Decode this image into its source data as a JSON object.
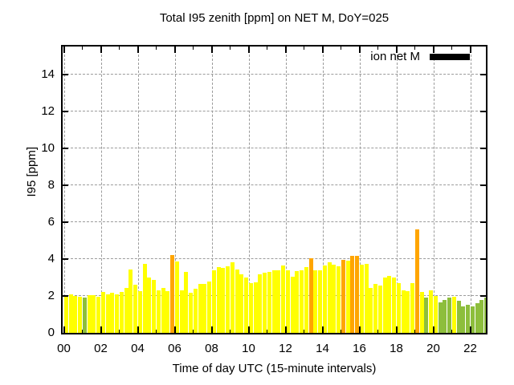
{
  "title": "Total I95 zenith [ppm] on NET M, DoY=025",
  "legend": {
    "label": "ion net M",
    "swatch_color": "#000000"
  },
  "axes": {
    "ylabel": "I95 [ppm]",
    "xlabel": "Time of day UTC (15-minute intervals)",
    "ytick_labels": [
      "0",
      "2",
      "4",
      "6",
      "8",
      "10",
      "12",
      "14"
    ],
    "ytick_values": [
      0,
      2,
      4,
      6,
      8,
      10,
      12,
      14
    ],
    "xtick_labels": [
      "00",
      "02",
      "04",
      "06",
      "08",
      "10",
      "12",
      "14",
      "16",
      "18",
      "20",
      "22"
    ],
    "xtick_hours": [
      0,
      2,
      4,
      6,
      8,
      10,
      12,
      14,
      16,
      18,
      20,
      22
    ],
    "minor_xtick_hours": [
      1,
      3,
      5,
      7,
      9,
      11,
      13,
      15,
      17,
      19,
      21
    ],
    "ymax": 15.5,
    "grid_color": "#9b9b9b",
    "border_color": "#000000"
  },
  "colors": {
    "Y": "#ffff00",
    "O": "#ffa500",
    "G": "#8dbe3c"
  },
  "chart_data": {
    "type": "bar",
    "title": "Total I95 zenith [ppm] on NET M, DoY=025",
    "xlabel": "Time of day UTC (15-minute intervals)",
    "ylabel": "I95 [ppm]",
    "ylim": [
      0,
      15.5
    ],
    "interval_minutes": 15,
    "start_time": "00:00",
    "end_time": "22:45",
    "values": [
      2.05,
      2.1,
      2.0,
      1.95,
      1.93,
      2.05,
      2.05,
      1.95,
      2.2,
      2.1,
      2.15,
      2.1,
      2.2,
      2.45,
      3.45,
      2.6,
      2.25,
      3.75,
      3.0,
      2.85,
      2.3,
      2.45,
      2.25,
      4.2,
      3.85,
      2.3,
      3.3,
      2.15,
      2.4,
      2.65,
      2.65,
      2.8,
      3.4,
      3.55,
      3.5,
      3.6,
      3.8,
      3.45,
      3.15,
      3.0,
      2.7,
      2.75,
      3.15,
      3.25,
      3.3,
      3.4,
      3.4,
      3.65,
      3.4,
      3.05,
      3.35,
      3.4,
      3.55,
      4.05,
      3.4,
      3.4,
      3.65,
      3.8,
      3.7,
      3.6,
      3.95,
      3.9,
      4.15,
      4.15,
      3.7,
      3.75,
      2.45,
      2.65,
      2.55,
      3.0,
      3.1,
      3.0,
      2.7,
      2.3,
      2.25,
      2.7,
      5.6,
      2.2,
      1.9,
      2.3,
      2.0,
      1.65,
      1.8,
      1.9,
      1.95,
      1.75,
      1.45,
      1.5,
      1.45,
      1.6,
      1.8,
      1.9
    ],
    "bar_colors": [
      "Y",
      "Y",
      "Y",
      "Y",
      "G",
      "Y",
      "Y",
      "Y",
      "Y",
      "Y",
      "Y",
      "Y",
      "Y",
      "Y",
      "Y",
      "Y",
      "Y",
      "Y",
      "Y",
      "Y",
      "Y",
      "Y",
      "Y",
      "O",
      "Y",
      "Y",
      "Y",
      "Y",
      "Y",
      "Y",
      "Y",
      "Y",
      "Y",
      "Y",
      "Y",
      "Y",
      "Y",
      "Y",
      "Y",
      "Y",
      "Y",
      "Y",
      "Y",
      "Y",
      "Y",
      "Y",
      "Y",
      "Y",
      "Y",
      "Y",
      "Y",
      "Y",
      "Y",
      "O",
      "Y",
      "Y",
      "Y",
      "Y",
      "Y",
      "Y",
      "O",
      "Y",
      "O",
      "O",
      "Y",
      "Y",
      "Y",
      "Y",
      "Y",
      "Y",
      "Y",
      "Y",
      "Y",
      "Y",
      "Y",
      "Y",
      "O",
      "Y",
      "G",
      "Y",
      "Y",
      "G",
      "G",
      "G",
      "Y",
      "G",
      "G",
      "G",
      "G",
      "G",
      "G",
      "G"
    ],
    "legend_entries": [
      "ion net M"
    ],
    "grid": true,
    "legend_position": "top-right-inside"
  }
}
